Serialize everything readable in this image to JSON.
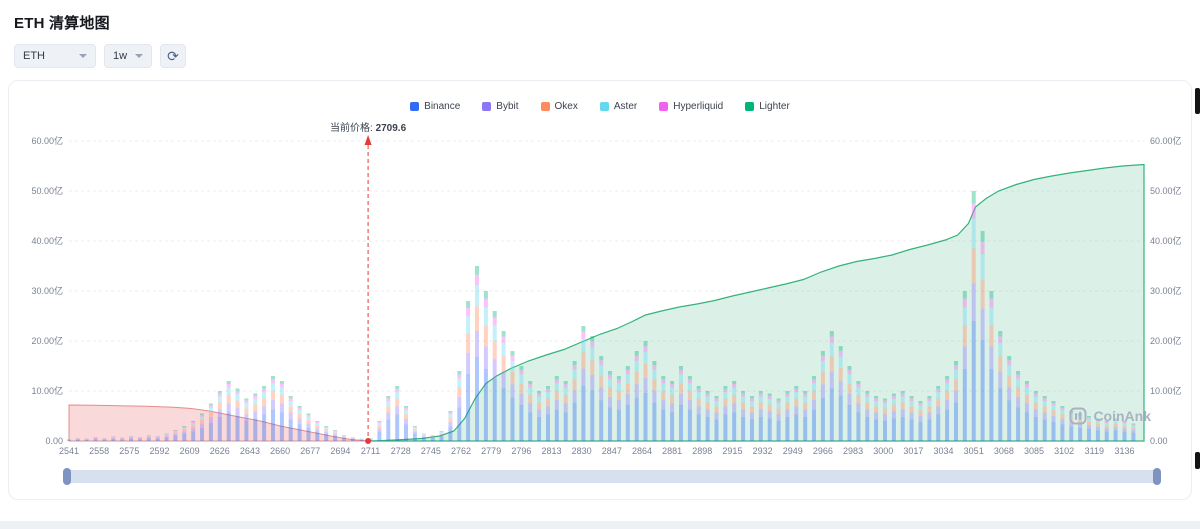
{
  "page": {
    "title": "ETH 清算地图"
  },
  "toolbar": {
    "symbol_value": "ETH",
    "interval_value": "1w"
  },
  "icons": {
    "refresh": "⟳"
  },
  "legend": [
    {
      "label": "Binance",
      "color": "#2e6bf6"
    },
    {
      "label": "Bybit",
      "color": "#8b76f9"
    },
    {
      "label": "Okex",
      "color": "#ff8a5e"
    },
    {
      "label": "Aster",
      "color": "#63d8ef"
    },
    {
      "label": "Hyperliquid",
      "color": "#ef63ef"
    },
    {
      "label": "Lighter",
      "color": "#00b578"
    }
  ],
  "current_price": {
    "label": "当前价格:",
    "value": "2709.6",
    "price": 2709.6,
    "line_color": "#e23b3b"
  },
  "watermark": "CoinAnk",
  "chart_data": {
    "type": "bar",
    "title": "ETH 清算地图",
    "x_range": [
      2541,
      3147
    ],
    "x_ticks": [
      2541,
      2558,
      2575,
      2592,
      2609,
      2626,
      2643,
      2660,
      2677,
      2694,
      2711,
      2728,
      2745,
      2762,
      2779,
      2796,
      2813,
      2830,
      2847,
      2864,
      2881,
      2898,
      2915,
      2932,
      2949,
      2966,
      2983,
      3000,
      3017,
      3034,
      3051,
      3068,
      3085,
      3102,
      3119,
      3136
    ],
    "y_axis": {
      "unit": "亿",
      "max": 60,
      "values": [
        0,
        10,
        20,
        30,
        40,
        50,
        60
      ],
      "labels": [
        "0.00",
        "10.00亿",
        "20.00亿",
        "30.00亿",
        "40.00亿",
        "50.00亿",
        "60.00亿"
      ],
      "grid": true
    },
    "legend_position": "top-center",
    "exchange_order": [
      "Binance",
      "Bybit",
      "Okex",
      "Aster",
      "Hyperliquid",
      "Lighter"
    ],
    "exchange_mix": {
      "Binance": 0.48,
      "Bybit": 0.15,
      "Okex": 0.14,
      "Aster": 0.12,
      "Hyperliquid": 0.06,
      "Lighter": 0.05
    },
    "series_colors": {
      "Binance": "#2e6bf6",
      "Bybit": "#8b76f9",
      "Okex": "#ff8a5e",
      "Aster": "#63d8ef",
      "Hyperliquid": "#ef63ef",
      "Lighter": "#00b578"
    },
    "bars": [
      [
        2541,
        0.4
      ],
      [
        2546,
        0.6
      ],
      [
        2551,
        0.5
      ],
      [
        2556,
        0.8
      ],
      [
        2561,
        0.6
      ],
      [
        2566,
        0.9
      ],
      [
        2571,
        0.7
      ],
      [
        2576,
        1.0
      ],
      [
        2581,
        0.8
      ],
      [
        2586,
        1.2
      ],
      [
        2591,
        1.0
      ],
      [
        2596,
        1.5
      ],
      [
        2601,
        2.2
      ],
      [
        2606,
        3.0
      ],
      [
        2611,
        4.0
      ],
      [
        2616,
        5.5
      ],
      [
        2621,
        7.5
      ],
      [
        2626,
        10.0
      ],
      [
        2631,
        12.0
      ],
      [
        2636,
        10.5
      ],
      [
        2641,
        8.5
      ],
      [
        2646,
        9.5
      ],
      [
        2651,
        11.0
      ],
      [
        2656,
        13.0
      ],
      [
        2661,
        12.0
      ],
      [
        2666,
        9.0
      ],
      [
        2671,
        7.0
      ],
      [
        2676,
        5.5
      ],
      [
        2681,
        4.0
      ],
      [
        2686,
        3.0
      ],
      [
        2691,
        2.2
      ],
      [
        2696,
        1.2
      ],
      [
        2701,
        0.8
      ],
      [
        2706,
        0.5
      ],
      [
        2711,
        0.6
      ],
      [
        2716,
        4.0
      ],
      [
        2721,
        9.0
      ],
      [
        2726,
        11.0
      ],
      [
        2731,
        7.0
      ],
      [
        2736,
        3.0
      ],
      [
        2741,
        1.5
      ],
      [
        2746,
        1.2
      ],
      [
        2751,
        2.0
      ],
      [
        2756,
        6.0
      ],
      [
        2761,
        14.0
      ],
      [
        2766,
        28.0
      ],
      [
        2771,
        35.0
      ],
      [
        2776,
        30.0
      ],
      [
        2781,
        26.0
      ],
      [
        2786,
        22.0
      ],
      [
        2791,
        18.0
      ],
      [
        2796,
        15.0
      ],
      [
        2801,
        12.0
      ],
      [
        2806,
        10.0
      ],
      [
        2811,
        11.0
      ],
      [
        2816,
        13.0
      ],
      [
        2821,
        12.0
      ],
      [
        2826,
        16.0
      ],
      [
        2831,
        23.0
      ],
      [
        2836,
        21.0
      ],
      [
        2841,
        17.0
      ],
      [
        2846,
        14.0
      ],
      [
        2851,
        13.0
      ],
      [
        2856,
        15.0
      ],
      [
        2861,
        18.0
      ],
      [
        2866,
        20.0
      ],
      [
        2871,
        16.0
      ],
      [
        2876,
        13.0
      ],
      [
        2881,
        12.0
      ],
      [
        2886,
        15.0
      ],
      [
        2891,
        13.0
      ],
      [
        2896,
        11.0
      ],
      [
        2901,
        10.0
      ],
      [
        2906,
        9.0
      ],
      [
        2911,
        11.0
      ],
      [
        2916,
        12.0
      ],
      [
        2921,
        10.0
      ],
      [
        2926,
        9.0
      ],
      [
        2931,
        10.0
      ],
      [
        2936,
        9.5
      ],
      [
        2941,
        8.5
      ],
      [
        2946,
        10.0
      ],
      [
        2951,
        11.0
      ],
      [
        2956,
        10.0
      ],
      [
        2961,
        13.0
      ],
      [
        2966,
        18.0
      ],
      [
        2971,
        22.0
      ],
      [
        2976,
        19.0
      ],
      [
        2981,
        15.0
      ],
      [
        2986,
        12.0
      ],
      [
        2991,
        10.0
      ],
      [
        2996,
        9.0
      ],
      [
        3001,
        8.5
      ],
      [
        3006,
        9.5
      ],
      [
        3011,
        10.0
      ],
      [
        3016,
        9.0
      ],
      [
        3021,
        8.0
      ],
      [
        3026,
        9.0
      ],
      [
        3031,
        11.0
      ],
      [
        3036,
        13.0
      ],
      [
        3041,
        16.0
      ],
      [
        3046,
        30.0
      ],
      [
        3051,
        50.0
      ],
      [
        3056,
        42.0
      ],
      [
        3061,
        30.0
      ],
      [
        3066,
        22.0
      ],
      [
        3071,
        17.0
      ],
      [
        3076,
        14.0
      ],
      [
        3081,
        12.0
      ],
      [
        3086,
        10.0
      ],
      [
        3091,
        9.0
      ],
      [
        3096,
        8.0
      ],
      [
        3101,
        7.0
      ],
      [
        3106,
        6.0
      ],
      [
        3111,
        5.5
      ],
      [
        3116,
        5.0
      ],
      [
        3121,
        4.5
      ],
      [
        3126,
        4.0
      ],
      [
        3131,
        4.5
      ],
      [
        3136,
        4.0
      ],
      [
        3141,
        3.5
      ]
    ],
    "cumulative_short": {
      "stroke": "#e58c8c",
      "fill": "rgba(236,130,130,0.30)",
      "points": [
        [
          2541,
          7.2
        ],
        [
          2555,
          7.15
        ],
        [
          2570,
          7.05
        ],
        [
          2585,
          6.95
        ],
        [
          2600,
          6.75
        ],
        [
          2610,
          6.5
        ],
        [
          2620,
          6.0
        ],
        [
          2630,
          5.3
        ],
        [
          2640,
          4.6
        ],
        [
          2650,
          3.9
        ],
        [
          2660,
          3.0
        ],
        [
          2670,
          2.3
        ],
        [
          2680,
          1.6
        ],
        [
          2690,
          0.9
        ],
        [
          2700,
          0.3
        ],
        [
          2708,
          0.05
        ],
        [
          2709.6,
          0
        ]
      ]
    },
    "cumulative_long": {
      "stroke": "#35b27c",
      "fill": "rgba(53,178,124,0.18)",
      "points": [
        [
          2711,
          0
        ],
        [
          2725,
          0.2
        ],
        [
          2740,
          0.5
        ],
        [
          2750,
          1.0
        ],
        [
          2758,
          2.0
        ],
        [
          2764,
          4.5
        ],
        [
          2770,
          8.5
        ],
        [
          2776,
          11.5
        ],
        [
          2782,
          13.0
        ],
        [
          2790,
          14.5
        ],
        [
          2800,
          16.0
        ],
        [
          2810,
          17.2
        ],
        [
          2820,
          18.3
        ],
        [
          2830,
          19.8
        ],
        [
          2840,
          21.3
        ],
        [
          2850,
          22.5
        ],
        [
          2858,
          23.8
        ],
        [
          2866,
          25.2
        ],
        [
          2875,
          26.0
        ],
        [
          2885,
          26.8
        ],
        [
          2895,
          27.4
        ],
        [
          2905,
          28.1
        ],
        [
          2915,
          29.0
        ],
        [
          2925,
          29.8
        ],
        [
          2935,
          30.6
        ],
        [
          2945,
          31.4
        ],
        [
          2955,
          32.3
        ],
        [
          2965,
          33.8
        ],
        [
          2975,
          35.0
        ],
        [
          2985,
          35.9
        ],
        [
          2995,
          36.5
        ],
        [
          3005,
          37.2
        ],
        [
          3015,
          38.3
        ],
        [
          3025,
          39.2
        ],
        [
          3035,
          40.2
        ],
        [
          3042,
          41.2
        ],
        [
          3048,
          43.5
        ],
        [
          3052,
          46.8
        ],
        [
          3058,
          48.5
        ],
        [
          3065,
          50.0
        ],
        [
          3075,
          51.3
        ],
        [
          3085,
          52.3
        ],
        [
          3095,
          53.0
        ],
        [
          3105,
          53.6
        ],
        [
          3115,
          54.1
        ],
        [
          3125,
          54.6
        ],
        [
          3135,
          55.0
        ],
        [
          3147,
          55.3
        ]
      ]
    }
  }
}
